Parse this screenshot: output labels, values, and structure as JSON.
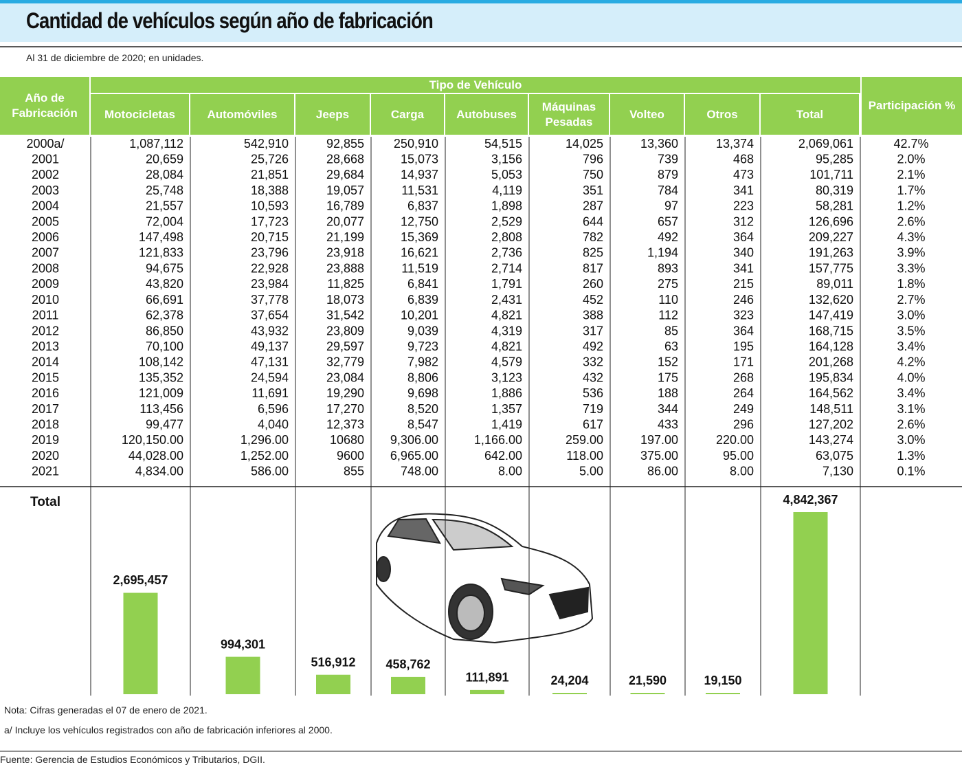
{
  "header": {
    "title": "Cantidad de vehículos según año de fabricación",
    "subtitle": "Al 31 de diciembre de 2020; en unidades."
  },
  "table": {
    "group_header": "Tipo de Vehículo",
    "columns": [
      "Año de Fabricación",
      "Motocicletas",
      "Automóviles",
      "Jeeps",
      "Carga",
      "Autobuses",
      "Máquinas Pesadas",
      "Volteo",
      "Otros",
      "Total",
      "Participación %"
    ],
    "rows": [
      [
        "2000a/",
        "1,087,112",
        "542,910",
        "92,855",
        "250,910",
        "54,515",
        "14,025",
        "13,360",
        "13,374",
        "2,069,061",
        "42.7%"
      ],
      [
        "2001",
        "20,659",
        "25,726",
        "28,668",
        "15,073",
        "3,156",
        "796",
        "739",
        "468",
        "95,285",
        "2.0%"
      ],
      [
        "2002",
        "28,084",
        "21,851",
        "29,684",
        "14,937",
        "5,053",
        "750",
        "879",
        "473",
        "101,711",
        "2.1%"
      ],
      [
        "2003",
        "25,748",
        "18,388",
        "19,057",
        "11,531",
        "4,119",
        "351",
        "784",
        "341",
        "80,319",
        "1.7%"
      ],
      [
        "2004",
        "21,557",
        "10,593",
        "16,789",
        "6,837",
        "1,898",
        "287",
        "97",
        "223",
        "58,281",
        "1.2%"
      ],
      [
        "2005",
        "72,004",
        "17,723",
        "20,077",
        "12,750",
        "2,529",
        "644",
        "657",
        "312",
        "126,696",
        "2.6%"
      ],
      [
        "2006",
        "147,498",
        "20,715",
        "21,199",
        "15,369",
        "2,808",
        "782",
        "492",
        "364",
        "209,227",
        "4.3%"
      ],
      [
        "2007",
        "121,833",
        "23,796",
        "23,918",
        "16,621",
        "2,736",
        "825",
        "1,194",
        "340",
        "191,263",
        "3.9%"
      ],
      [
        "2008",
        "94,675",
        "22,928",
        "23,888",
        "11,519",
        "2,714",
        "817",
        "893",
        "341",
        "157,775",
        "3.3%"
      ],
      [
        "2009",
        "43,820",
        "23,984",
        "11,825",
        "6,841",
        "1,791",
        "260",
        "275",
        "215",
        "89,011",
        "1.8%"
      ],
      [
        "2010",
        "66,691",
        "37,778",
        "18,073",
        "6,839",
        "2,431",
        "452",
        "110",
        "246",
        "132,620",
        "2.7%"
      ],
      [
        "2011",
        "62,378",
        "37,654",
        "31,542",
        "10,201",
        "4,821",
        "388",
        "112",
        "323",
        "147,419",
        "3.0%"
      ],
      [
        "2012",
        "86,850",
        "43,932",
        "23,809",
        "9,039",
        "4,319",
        "317",
        "85",
        "364",
        "168,715",
        "3.5%"
      ],
      [
        "2013",
        "70,100",
        "49,137",
        "29,597",
        "9,723",
        "4,821",
        "492",
        "63",
        "195",
        "164,128",
        "3.4%"
      ],
      [
        "2014",
        "108,142",
        "47,131",
        "32,779",
        "7,982",
        "4,579",
        "332",
        "152",
        "171",
        "201,268",
        "4.2%"
      ],
      [
        "2015",
        "135,352",
        "24,594",
        "23,084",
        "8,806",
        "3,123",
        "432",
        "175",
        "268",
        "195,834",
        "4.0%"
      ],
      [
        "2016",
        "121,009",
        "11,691",
        "19,290",
        "9,698",
        "1,886",
        "536",
        "188",
        "264",
        "164,562",
        "3.4%"
      ],
      [
        "2017",
        "113,456",
        "6,596",
        "17,270",
        "8,520",
        "1,357",
        "719",
        "344",
        "249",
        "148,511",
        "3.1%"
      ],
      [
        "2018",
        "99,477",
        "4,040",
        "12,373",
        "8,547",
        "1,419",
        "617",
        "433",
        "296",
        "127,202",
        "2.6%"
      ],
      [
        "2019",
        "120,150.00",
        "1,296.00",
        "10680",
        "9,306.00",
        "1,166.00",
        "259.00",
        "197.00",
        "220.00",
        "143,274",
        "3.0%"
      ],
      [
        "2020",
        "44,028.00",
        "1,252.00",
        "9600",
        "6,965.00",
        "642.00",
        "118.00",
        "375.00",
        "95.00",
        "63,075",
        "1.3%"
      ],
      [
        "2021",
        "4,834.00",
        "586.00",
        "855",
        "748.00",
        "8.00",
        "5.00",
        "86.00",
        "8.00",
        "7,130",
        "0.1%"
      ]
    ],
    "totals": {
      "label": "Total",
      "values": [
        2695457,
        994301,
        516912,
        458762,
        111891,
        24204,
        21590,
        19150,
        4842367
      ],
      "value_labels": [
        "2,695,457",
        "994,301",
        "516,912",
        "458,762",
        "111,891",
        "24,204",
        "21,590",
        "19,150",
        "4,842,367"
      ],
      "color": "#92d050"
    }
  },
  "notes": [
    "Nota: Cifras generadas el 07 de enero de 2021.",
    "a/ Incluye los vehículos registrados con año de fabricación inferiores al 2000."
  ],
  "source": "Fuente: Gerencia de Estudios Económicos y Tributarios, DGII."
}
